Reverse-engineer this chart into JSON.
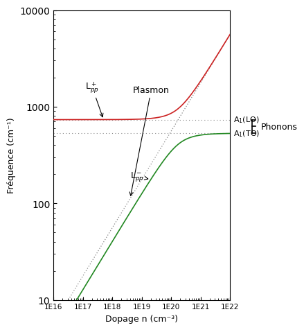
{
  "xlabel": "Dopage n (cm⁻³)",
  "ylabel": "Fréquence (cm⁻¹)",
  "omega_LO": 735.0,
  "omega_TO": 531.0,
  "color_Lplus": "#cc2222",
  "color_Lminus": "#228822",
  "color_plasmon": "#888888",
  "color_LO": "#888888",
  "color_TO": "#888888",
  "background": "#ffffff",
  "omega_p_ref": 56.0,
  "n_ref_p": 1e+18,
  "annotation_Lplus": "L$^+_{pp}$",
  "annotation_Lminus": "L$^-_{pp}$",
  "annotation_plasmon": "Plasmon",
  "annotation_LO": "A$_1$(LO)",
  "annotation_TO": "A$_1$(TO)",
  "annotation_phonons": "Phonons"
}
